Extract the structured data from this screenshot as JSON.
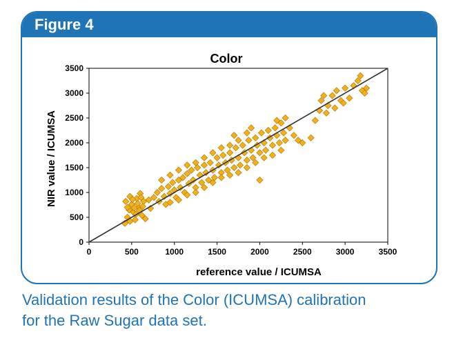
{
  "figure": {
    "label": "Figure 4",
    "caption_line1": "Validation results of the Color (ICUMSA) calibration",
    "caption_line2": "for the Raw Sugar data set."
  },
  "colors": {
    "brand_blue": "#1f73b7",
    "marker_fill": "#f2b01e",
    "marker_stroke": "#b57f00",
    "reference_line": "#333333"
  },
  "chart_data": {
    "type": "scatter",
    "title": "Color",
    "xlabel": "reference value / ICUMSA",
    "ylabel": "NIR value / ICUMSA",
    "xlim": [
      0,
      3500
    ],
    "ylim": [
      0,
      3500
    ],
    "xticks": [
      0,
      500,
      1000,
      1500,
      2000,
      2500,
      3000,
      3500
    ],
    "yticks": [
      0,
      500,
      1000,
      1500,
      2000,
      2500,
      3000,
      3500
    ],
    "grid": false,
    "marker": "diamond",
    "reference_line": [
      [
        0,
        0
      ],
      [
        3500,
        3500
      ]
    ],
    "points": [
      [
        420,
        380
      ],
      [
        450,
        500
      ],
      [
        470,
        650
      ],
      [
        430,
        820
      ],
      [
        480,
        920
      ],
      [
        500,
        760
      ],
      [
        520,
        600
      ],
      [
        540,
        450
      ],
      [
        560,
        880
      ],
      [
        580,
        700
      ],
      [
        600,
        980
      ],
      [
        620,
        540
      ],
      [
        640,
        820
      ],
      [
        450,
        700
      ],
      [
        480,
        420
      ],
      [
        510,
        860
      ],
      [
        530,
        690
      ],
      [
        550,
        560
      ],
      [
        570,
        780
      ],
      [
        590,
        640
      ],
      [
        610,
        900
      ],
      [
        630,
        720
      ],
      [
        660,
        470
      ],
      [
        700,
        850
      ],
      [
        720,
        680
      ],
      [
        760,
        900
      ],
      [
        800,
        1000
      ],
      [
        820,
        820
      ],
      [
        850,
        1080
      ],
      [
        880,
        920
      ],
      [
        900,
        760
      ],
      [
        930,
        1120
      ],
      [
        950,
        980
      ],
      [
        980,
        1200
      ],
      [
        1000,
        1050
      ],
      [
        1020,
        900
      ],
      [
        1050,
        1250
      ],
      [
        1070,
        1100
      ],
      [
        1100,
        1300
      ],
      [
        1120,
        1000
      ],
      [
        1150,
        1380
      ],
      [
        1170,
        1180
      ],
      [
        1200,
        1450
      ],
      [
        1220,
        1250
      ],
      [
        1250,
        1100
      ],
      [
        1270,
        1500
      ],
      [
        1300,
        1350
      ],
      [
        1320,
        1200
      ],
      [
        1350,
        1550
      ],
      [
        1370,
        1400
      ],
      [
        1400,
        1250
      ],
      [
        1420,
        1600
      ],
      [
        1450,
        1450
      ],
      [
        1470,
        1300
      ],
      [
        1500,
        1700
      ],
      [
        1520,
        1550
      ],
      [
        1550,
        1400
      ],
      [
        1570,
        1750
      ],
      [
        1600,
        1600
      ],
      [
        1620,
        1450
      ],
      [
        1650,
        1800
      ],
      [
        1670,
        1650
      ],
      [
        1700,
        1500
      ],
      [
        1720,
        1900
      ],
      [
        1750,
        1700
      ],
      [
        1770,
        1550
      ],
      [
        1800,
        1950
      ],
      [
        1820,
        1800
      ],
      [
        1850,
        1650
      ],
      [
        1870,
        2050
      ],
      [
        1900,
        1850
      ],
      [
        1920,
        1700
      ],
      [
        1950,
        2100
      ],
      [
        1970,
        1950
      ],
      [
        2000,
        1800
      ],
      [
        2020,
        2200
      ],
      [
        2050,
        2000
      ],
      [
        2070,
        1850
      ],
      [
        2100,
        2250
      ],
      [
        2120,
        2100
      ],
      [
        2150,
        1950
      ],
      [
        2180,
        2300
      ],
      [
        2200,
        2150
      ],
      [
        2230,
        2000
      ],
      [
        2250,
        2400
      ],
      [
        2280,
        2200
      ],
      [
        2300,
        2050
      ],
      [
        2350,
        2300
      ],
      [
        2400,
        2150
      ],
      [
        2450,
        2050
      ],
      [
        2500,
        2000
      ],
      [
        2600,
        2100
      ],
      [
        2650,
        2450
      ],
      [
        2700,
        2650
      ],
      [
        2720,
        2850
      ],
      [
        2750,
        2950
      ],
      [
        2800,
        2750
      ],
      [
        2850,
        2950
      ],
      [
        2900,
        3050
      ],
      [
        2950,
        2850
      ],
      [
        3000,
        3100
      ],
      [
        3050,
        2900
      ],
      [
        3100,
        3150
      ],
      [
        3150,
        3250
      ],
      [
        3180,
        3350
      ],
      [
        3200,
        3050
      ],
      [
        3250,
        3100
      ],
      [
        3230,
        3000
      ],
      [
        2780,
        2600
      ],
      [
        2880,
        2700
      ],
      [
        2980,
        2800
      ],
      [
        2200,
        2450
      ],
      [
        2300,
        2500
      ],
      [
        1750,
        2050
      ],
      [
        1850,
        2200
      ],
      [
        1650,
        1950
      ],
      [
        1550,
        1900
      ],
      [
        1450,
        1800
      ],
      [
        1350,
        1700
      ],
      [
        1250,
        1600
      ],
      [
        1150,
        1550
      ],
      [
        1050,
        1450
      ],
      [
        950,
        1350
      ],
      [
        850,
        1250
      ],
      [
        1950,
        1600
      ],
      [
        1850,
        1500
      ],
      [
        1750,
        1400
      ],
      [
        1650,
        1350
      ],
      [
        1550,
        1300
      ],
      [
        1450,
        1200
      ],
      [
        1350,
        1100
      ],
      [
        1250,
        1000
      ],
      [
        1150,
        950
      ],
      [
        1050,
        850
      ],
      [
        950,
        800
      ],
      [
        2050,
        1700
      ],
      [
        2150,
        1750
      ],
      [
        2250,
        1850
      ],
      [
        2000,
        1250
      ],
      [
        1700,
        2150
      ],
      [
        1900,
        2300
      ]
    ]
  }
}
